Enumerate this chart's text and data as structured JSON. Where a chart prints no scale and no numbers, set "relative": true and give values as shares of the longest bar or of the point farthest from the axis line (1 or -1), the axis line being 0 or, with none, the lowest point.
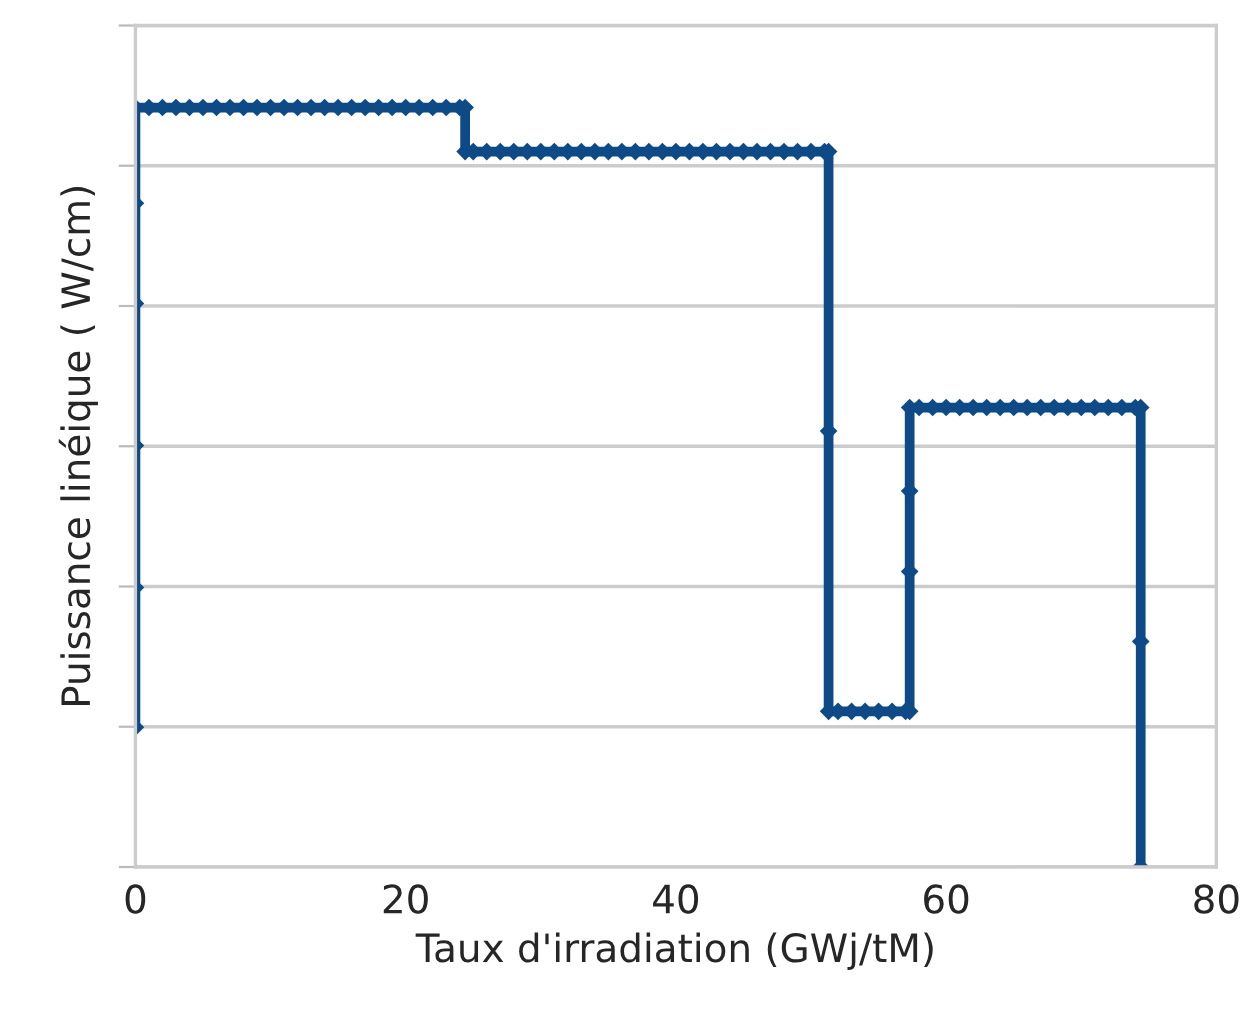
{
  "chart_data": {
    "type": "line",
    "xlabel": "Taux d'irradiation (GWj/tM)",
    "ylabel": "Puissance linéique ( W/cm)",
    "relative": true,
    "xlim": [
      0,
      80
    ],
    "xticks": [
      0,
      20,
      40,
      60,
      80
    ],
    "grid": "y",
    "marker": "diamond",
    "line_style": "solid",
    "series": [
      {
        "color": "#0e4a86",
        "x": [
          0,
          0,
          0,
          0,
          0,
          0,
          1,
          2,
          3,
          4,
          5,
          6,
          7,
          8,
          9,
          10,
          11,
          12,
          13,
          14,
          15,
          16,
          17,
          18,
          19,
          20,
          21,
          22,
          23,
          24,
          24.4,
          24.4,
          25,
          26,
          27,
          28,
          29,
          30,
          31,
          32,
          33,
          34,
          35,
          36,
          37,
          38,
          39,
          40,
          41,
          42,
          43,
          44,
          45,
          46,
          47,
          48,
          49,
          50,
          51,
          51.3,
          51.3,
          51.3,
          52,
          53,
          54,
          55,
          56,
          57,
          57.3,
          57.3,
          57.3,
          57.3,
          58,
          59,
          60,
          61,
          62,
          63,
          64,
          65,
          66,
          67,
          68,
          69,
          70,
          71,
          72,
          73,
          74,
          74.4,
          74.4,
          74.4
        ],
        "values": [
          0.184,
          0.368,
          0.555,
          0.742,
          0.874,
          1.0,
          1.0,
          1.0,
          1.0,
          1.0,
          1.0,
          1.0,
          1.0,
          1.0,
          1.0,
          1.0,
          1.0,
          1.0,
          1.0,
          1.0,
          1.0,
          1.0,
          1.0,
          1.0,
          1.0,
          1.0,
          1.0,
          1.0,
          1.0,
          1.0,
          1.0,
          0.942,
          0.942,
          0.942,
          0.942,
          0.942,
          0.942,
          0.942,
          0.942,
          0.942,
          0.942,
          0.942,
          0.942,
          0.942,
          0.942,
          0.942,
          0.942,
          0.942,
          0.942,
          0.942,
          0.942,
          0.942,
          0.942,
          0.942,
          0.942,
          0.942,
          0.942,
          0.942,
          0.942,
          0.942,
          0.574,
          0.205,
          0.205,
          0.205,
          0.205,
          0.205,
          0.205,
          0.205,
          0.205,
          0.389,
          0.495,
          0.605,
          0.605,
          0.605,
          0.605,
          0.605,
          0.605,
          0.605,
          0.605,
          0.605,
          0.605,
          0.605,
          0.605,
          0.605,
          0.605,
          0.605,
          0.605,
          0.605,
          0.605,
          0.605,
          0.297,
          0.0
        ]
      }
    ]
  }
}
